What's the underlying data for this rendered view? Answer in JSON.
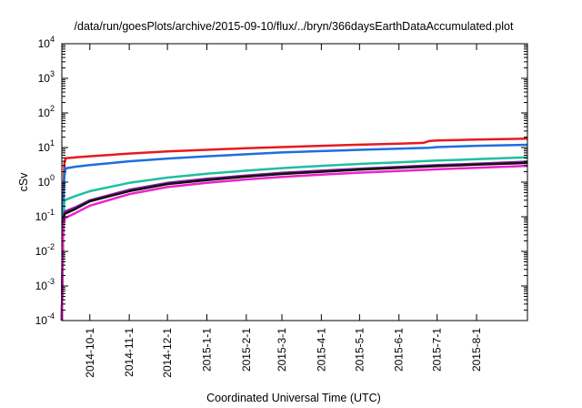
{
  "chart_data": {
    "type": "line",
    "title": "/data/run/goesPlots/archive/2015-09-10/flux/../bryn/366daysEarthDataAccumulated.plot",
    "xlabel": "Coordinated Universal Time (UTC)",
    "ylabel": "cSv",
    "yscale": "log",
    "ylim": [
      0.0001,
      10000
    ],
    "xlim": [
      "2014-09-09",
      "2015-09-10"
    ],
    "y_ticks": [
      {
        "base": "10",
        "exp": "4",
        "value": 10000
      },
      {
        "base": "10",
        "exp": "3",
        "value": 1000
      },
      {
        "base": "10",
        "exp": "2",
        "value": 100
      },
      {
        "base": "10",
        "exp": "1",
        "value": 10
      },
      {
        "base": "10",
        "exp": "0",
        "value": 1
      },
      {
        "base": "10",
        "exp": "-1",
        "value": 0.1
      },
      {
        "base": "10",
        "exp": "-2",
        "value": 0.01
      },
      {
        "base": "10",
        "exp": "-3",
        "value": 0.001
      },
      {
        "base": "10",
        "exp": "-4",
        "value": 0.0001
      }
    ],
    "x_ticks": [
      {
        "label": "2014-10-1",
        "date": "2014-10-01"
      },
      {
        "label": "2014-11-1",
        "date": "2014-11-01"
      },
      {
        "label": "2014-12-1",
        "date": "2014-12-01"
      },
      {
        "label": "2015-1-1",
        "date": "2015-01-01"
      },
      {
        "label": "2015-2-1",
        "date": "2015-02-01"
      },
      {
        "label": "2015-3-1",
        "date": "2015-03-01"
      },
      {
        "label": "2015-4-1",
        "date": "2015-04-01"
      },
      {
        "label": "2015-5-1",
        "date": "2015-05-01"
      },
      {
        "label": "2015-6-1",
        "date": "2015-06-01"
      },
      {
        "label": "2015-7-1",
        "date": "2015-07-01"
      },
      {
        "label": "2015-8-1",
        "date": "2015-08-01"
      }
    ],
    "grid": false,
    "legend": "none",
    "series": [
      {
        "color": "#e8191f",
        "points": [
          [
            "2014-09-09",
            0.0001
          ],
          [
            "2014-09-10",
            0.2
          ],
          [
            "2014-09-11",
            3.5
          ],
          [
            "2014-09-12",
            4.9
          ],
          [
            "2014-09-20",
            5.2
          ],
          [
            "2014-10-01",
            5.6
          ],
          [
            "2014-11-01",
            6.7
          ],
          [
            "2014-12-01",
            7.7
          ],
          [
            "2015-01-01",
            8.6
          ],
          [
            "2015-02-01",
            9.5
          ],
          [
            "2015-03-01",
            10.3
          ],
          [
            "2015-04-01",
            11.2
          ],
          [
            "2015-05-01",
            12.1
          ],
          [
            "2015-06-01",
            13.0
          ],
          [
            "2015-06-20",
            13.6
          ],
          [
            "2015-06-25",
            15.5
          ],
          [
            "2015-07-01",
            15.9
          ],
          [
            "2015-08-01",
            16.9
          ],
          [
            "2015-09-10",
            18.0
          ]
        ]
      },
      {
        "color": "#1e6ee0",
        "points": [
          [
            "2014-09-09",
            0.0001
          ],
          [
            "2014-09-10",
            0.1
          ],
          [
            "2014-09-11",
            1.5
          ],
          [
            "2014-09-12",
            2.5
          ],
          [
            "2014-09-20",
            2.8
          ],
          [
            "2014-10-01",
            3.1
          ],
          [
            "2014-11-01",
            4.0
          ],
          [
            "2014-12-01",
            4.8
          ],
          [
            "2015-01-01",
            5.6
          ],
          [
            "2015-02-01",
            6.4
          ],
          [
            "2015-03-01",
            7.2
          ],
          [
            "2015-04-01",
            7.9
          ],
          [
            "2015-05-01",
            8.6
          ],
          [
            "2015-06-01",
            9.3
          ],
          [
            "2015-06-25",
            9.9
          ],
          [
            "2015-07-01",
            10.3
          ],
          [
            "2015-08-01",
            11.2
          ],
          [
            "2015-09-10",
            12.0
          ]
        ]
      },
      {
        "color": "#1fbfa0",
        "points": [
          [
            "2014-09-09",
            0.0001
          ],
          [
            "2014-09-10",
            0.05
          ],
          [
            "2014-09-11",
            0.3
          ],
          [
            "2014-09-20",
            0.4
          ],
          [
            "2014-10-01",
            0.55
          ],
          [
            "2014-11-01",
            0.95
          ],
          [
            "2014-12-01",
            1.35
          ],
          [
            "2015-01-01",
            1.75
          ],
          [
            "2015-02-01",
            2.15
          ],
          [
            "2015-03-01",
            2.55
          ],
          [
            "2015-04-01",
            2.95
          ],
          [
            "2015-05-01",
            3.35
          ],
          [
            "2015-06-01",
            3.75
          ],
          [
            "2015-07-01",
            4.2
          ],
          [
            "2015-08-01",
            4.6
          ],
          [
            "2015-09-10",
            5.2
          ]
        ]
      },
      {
        "color": "#8b1fa8",
        "points": [
          [
            "2014-09-09",
            0.0001
          ],
          [
            "2014-09-10",
            0.05
          ],
          [
            "2014-09-11",
            0.14
          ],
          [
            "2014-09-20",
            0.19
          ],
          [
            "2014-10-01",
            0.3
          ],
          [
            "2014-11-01",
            0.6
          ],
          [
            "2014-12-01",
            0.95
          ],
          [
            "2015-01-01",
            1.25
          ],
          [
            "2015-02-01",
            1.55
          ],
          [
            "2015-03-01",
            1.85
          ],
          [
            "2015-04-01",
            2.15
          ],
          [
            "2015-05-01",
            2.45
          ],
          [
            "2015-06-01",
            2.75
          ],
          [
            "2015-07-01",
            3.1
          ],
          [
            "2015-08-01",
            3.4
          ],
          [
            "2015-09-10",
            3.9
          ]
        ]
      },
      {
        "color": "#111111",
        "points": [
          [
            "2014-09-09",
            0.0001
          ],
          [
            "2014-09-10",
            0.05
          ],
          [
            "2014-09-11",
            0.12
          ],
          [
            "2014-09-20",
            0.17
          ],
          [
            "2014-10-01",
            0.28
          ],
          [
            "2014-11-01",
            0.55
          ],
          [
            "2014-12-01",
            0.88
          ],
          [
            "2015-01-01",
            1.15
          ],
          [
            "2015-02-01",
            1.45
          ],
          [
            "2015-03-01",
            1.72
          ],
          [
            "2015-04-01",
            2.0
          ],
          [
            "2015-05-01",
            2.3
          ],
          [
            "2015-06-01",
            2.6
          ],
          [
            "2015-07-01",
            2.9
          ],
          [
            "2015-08-01",
            3.2
          ],
          [
            "2015-09-10",
            3.6
          ]
        ]
      },
      {
        "color": "#ee22cc",
        "points": [
          [
            "2014-09-09",
            0.0001
          ],
          [
            "2014-09-10",
            0.04
          ],
          [
            "2014-09-11",
            0.09
          ],
          [
            "2014-09-20",
            0.13
          ],
          [
            "2014-10-01",
            0.21
          ],
          [
            "2014-11-01",
            0.45
          ],
          [
            "2014-12-01",
            0.72
          ],
          [
            "2015-01-01",
            0.95
          ],
          [
            "2015-02-01",
            1.2
          ],
          [
            "2015-03-01",
            1.42
          ],
          [
            "2015-04-01",
            1.65
          ],
          [
            "2015-05-01",
            1.88
          ],
          [
            "2015-06-01",
            2.1
          ],
          [
            "2015-07-01",
            2.35
          ],
          [
            "2015-08-01",
            2.6
          ],
          [
            "2015-09-10",
            2.95
          ]
        ]
      }
    ]
  }
}
